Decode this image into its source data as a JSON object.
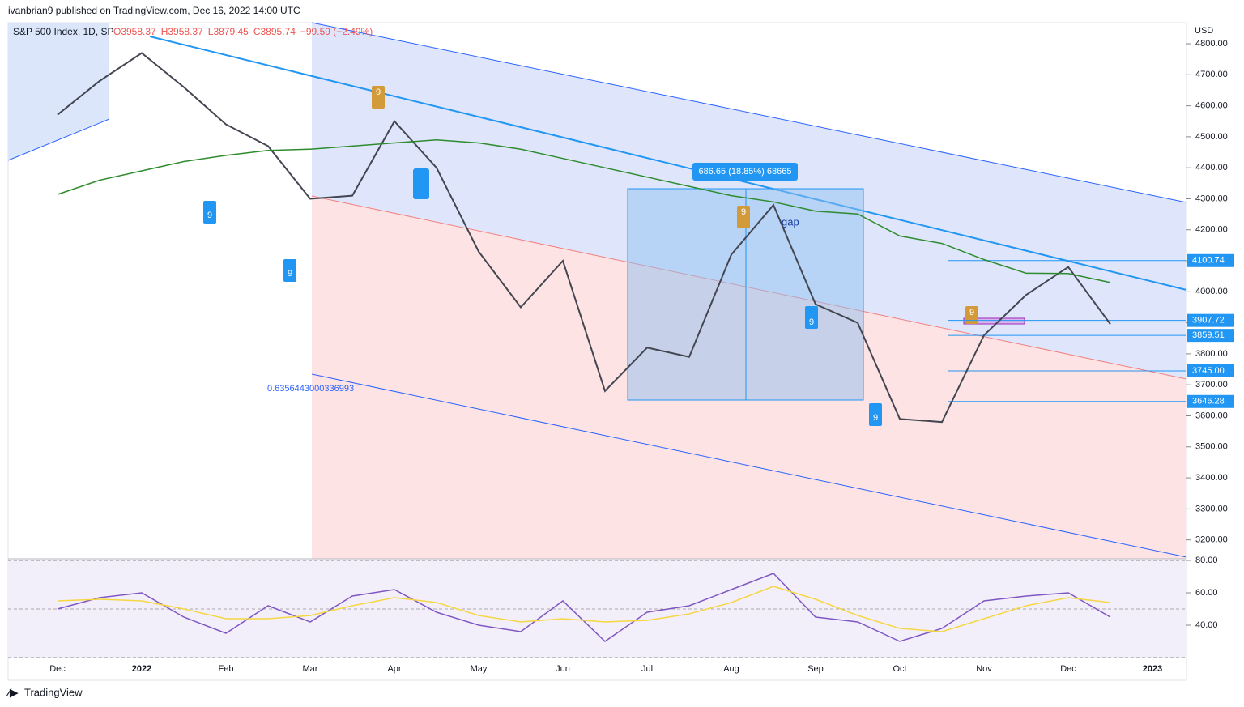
{
  "header": {
    "publisher": "ivanbrian9 published on TradingView.com, Dec 16, 2022 14:00 UTC",
    "footer": "TradingView"
  },
  "chart_data": [
    {
      "type": "line",
      "symbol": "S&P 500 Index, 1D, SP",
      "ohlc": [
        {
          "value": 3958.37,
          "label": "O3958.37"
        },
        {
          "value": 3958.37,
          "label": "H3958.37"
        },
        {
          "value": 3879.45,
          "label": "L3879.45"
        },
        {
          "value": 3895.74,
          "label": "C3895.74"
        },
        {
          "value": -99.59,
          "label": "−99.59 (−2.49%)"
        }
      ],
      "currency": "USD",
      "categories": [
        "Dec",
        null,
        "2022",
        null,
        "Feb",
        null,
        "Mar",
        null,
        "Apr",
        null,
        "May",
        null,
        "Jun",
        null,
        "Jul",
        null,
        "Aug",
        null,
        "Sep",
        null,
        "Oct",
        null,
        "Nov",
        null,
        "Dec",
        null,
        "2023"
      ],
      "series": [
        {
          "name": "Price",
          "color": "#434651",
          "values": [
            4571,
            4680,
            4770,
            4660,
            4540,
            4470,
            4300,
            4310,
            4550,
            4400,
            4130,
            3950,
            4100,
            3680,
            3820,
            3790,
            4120,
            4280,
            3960,
            3900,
            3590,
            3580,
            3860,
            3990,
            4080,
            3895.74,
            null
          ]
        },
        {
          "name": "MA 200",
          "color": "#2e8b2e",
          "values": [
            4314,
            4360,
            4390,
            4420,
            4440,
            4456,
            4460,
            4470,
            4480,
            4490,
            4480,
            4460,
            4430,
            4400,
            4370,
            4340,
            4310,
            4290,
            4260,
            4251,
            4180,
            4156,
            4104,
            4060,
            4059,
            4030,
            null
          ]
        }
      ],
      "ylim": [
        3139,
        4868
      ],
      "yticks": [
        {
          "value": 3200,
          "label": "3200.00"
        },
        {
          "value": 3300,
          "label": "3300.00"
        },
        {
          "value": 3400,
          "label": "3400.00"
        },
        {
          "value": 3500,
          "label": "3500.00"
        },
        {
          "value": 3600,
          "label": "3600.00"
        },
        {
          "value": 3700,
          "label": "3700.00"
        },
        {
          "value": 3800,
          "label": "3800.00"
        },
        {
          "value": 3900,
          "label": "3900.00"
        },
        {
          "value": 4000,
          "label": "4000.00"
        },
        {
          "value": 4100,
          "label": "4100.00"
        },
        {
          "value": 4200,
          "label": "4200.00"
        },
        {
          "value": 4300,
          "label": "4300.00"
        },
        {
          "value": 4400,
          "label": "4400.00"
        },
        {
          "value": 4500,
          "label": "4500.00"
        },
        {
          "value": 4600,
          "label": "4600.00"
        },
        {
          "value": 4700,
          "label": "4700.00"
        },
        {
          "value": 4800,
          "label": "4800.00"
        }
      ],
      "price_labels": [
        {
          "value": 4100.74,
          "label": "4100.74"
        },
        {
          "value": 3907.72,
          "label": "3907.72"
        },
        {
          "value": 3859.51,
          "label": "3859.51"
        },
        {
          "value": 3745.0,
          "label": "3745.00"
        },
        {
          "value": 3646.28,
          "label": "3646.28"
        }
      ],
      "price_label_color": "#2196f3",
      "annotations": {
        "measure": "686.65 (18.85%) 68665",
        "gap": "gap",
        "fib": "0.6356443000336993",
        "nine": "9"
      }
    },
    {
      "type": "line",
      "categories": [
        "Dec",
        null,
        "2022",
        null,
        "Feb",
        null,
        "Mar",
        null,
        "Apr",
        null,
        "May",
        null,
        "Jun",
        null,
        "Jul",
        null,
        "Aug",
        null,
        "Sep",
        null,
        "Oct",
        null,
        "Nov",
        null,
        "Dec",
        null,
        "2023"
      ],
      "series": [
        {
          "name": "RSI",
          "color": "#7e57c2",
          "values": [
            50,
            57,
            60,
            45,
            35,
            52,
            42,
            58,
            62,
            48,
            40,
            36,
            55,
            30,
            48,
            52,
            62,
            72,
            45,
            42,
            30,
            38,
            55,
            58,
            60,
            45,
            null
          ]
        },
        {
          "name": "RSI MA",
          "color": "#f5d742",
          "values": [
            55,
            56,
            55,
            50,
            44,
            44,
            46,
            52,
            57,
            54,
            46,
            42,
            44,
            42,
            43,
            47,
            54,
            64,
            56,
            46,
            38,
            36,
            44,
            52,
            57,
            54,
            null
          ]
        }
      ],
      "ylim": [
        20,
        80
      ],
      "yticks": [
        {
          "value": 40,
          "label": "40.00"
        },
        {
          "value": 60,
          "label": "60.00"
        },
        {
          "value": 80,
          "label": "80.00"
        }
      ]
    }
  ]
}
